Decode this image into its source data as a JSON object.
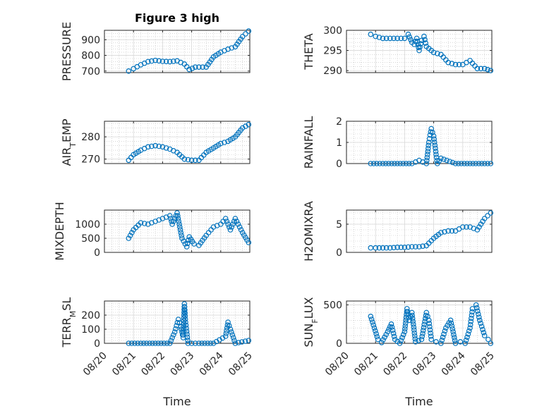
{
  "figure_title": "Figure 3 high",
  "x_axis_label": "Time",
  "colors": {
    "marker": "#0072BD",
    "axes": "#262626",
    "grid": "#d9d9d9",
    "minor_grid": "#bfbfbf"
  },
  "chart_data": [
    {
      "type": "scatter",
      "title": "Figure 3 high",
      "ylabel": "PRESSURE",
      "ylabel_sub": null,
      "xlabel": "",
      "xlim": [
        "2021-08-20",
        "2021-08-25"
      ],
      "ylim": [
        690,
        960
      ],
      "yticks": [
        700,
        800,
        900
      ],
      "ytick_labels": [
        "700",
        "800",
        "900"
      ],
      "grid": "major+minor",
      "x_tick_labels": [],
      "series": [
        {
          "marker": "circle-open",
          "x": [
            "2021-08-20T20:00",
            "2021-08-21T00:00",
            "2021-08-21T06:00",
            "2021-08-21T12:00",
            "2021-08-21T18:00",
            "2021-08-22T00:00",
            "2021-08-22T06:00",
            "2021-08-22T12:00",
            "2021-08-22T18:00",
            "2021-08-22T22:00",
            "2021-08-23T03:00",
            "2021-08-23T12:00",
            "2021-08-23T18:00",
            "2021-08-24T00:00",
            "2021-08-24T06:00",
            "2021-08-24T12:00",
            "2021-08-24T18:00",
            "2021-08-24T23:00"
          ],
          "y": [
            700,
            715,
            740,
            760,
            768,
            762,
            760,
            765,
            745,
            710,
            725,
            725,
            790,
            820,
            840,
            855,
            920,
            955
          ]
        }
      ]
    },
    {
      "type": "scatter",
      "title": "",
      "ylabel": "THETA",
      "ylabel_sub": null,
      "xlabel": "",
      "xlim": [
        "2021-08-20",
        "2021-08-25"
      ],
      "ylim": [
        289.5,
        300
      ],
      "yticks": [
        290,
        295,
        300
      ],
      "ytick_labels": [
        "290",
        "295",
        "300"
      ],
      "grid": "major+minor",
      "x_tick_labels": [],
      "series": [
        {
          "marker": "circle-open",
          "x": [
            "2021-08-20T20:00",
            "2021-08-21T00:00",
            "2021-08-21T06:00",
            "2021-08-21T12:00",
            "2021-08-21T18:00",
            "2021-08-22T00:00",
            "2021-08-22T03:00",
            "2021-08-22T06:00",
            "2021-08-22T08:00",
            "2021-08-22T10:00",
            "2021-08-22T12:00",
            "2021-08-22T14:00",
            "2021-08-22T16:00",
            "2021-08-22T18:00",
            "2021-08-23T00:00",
            "2021-08-23T06:00",
            "2021-08-23T12:00",
            "2021-08-23T18:00",
            "2021-08-24T00:00",
            "2021-08-24T06:00",
            "2021-08-24T12:00",
            "2021-08-24T18:00",
            "2021-08-24T23:00"
          ],
          "y": [
            299,
            298.5,
            298,
            298,
            298,
            298,
            299,
            297,
            296.5,
            298,
            295,
            297.5,
            298.5,
            296,
            294.5,
            294,
            292,
            291.5,
            291.5,
            292.5,
            290.5,
            290.5,
            290
          ]
        }
      ]
    },
    {
      "type": "scatter",
      "title": "",
      "ylabel": "AIR",
      "ylabel_sub": "T",
      "ylabel_tail": "EMP",
      "xlabel": "",
      "xlim": [
        "2021-08-20",
        "2021-08-25"
      ],
      "ylim": [
        268,
        287
      ],
      "yticks": [
        270,
        280
      ],
      "ytick_labels": [
        "270",
        "280"
      ],
      "grid": "major+minor",
      "x_tick_labels": [],
      "series": [
        {
          "marker": "circle-open",
          "x": [
            "2021-08-20T20:00",
            "2021-08-21T00:00",
            "2021-08-21T06:00",
            "2021-08-21T12:00",
            "2021-08-21T18:00",
            "2021-08-22T00:00",
            "2021-08-22T06:00",
            "2021-08-22T12:00",
            "2021-08-22T18:00",
            "2021-08-23T00:00",
            "2021-08-23T06:00",
            "2021-08-23T12:00",
            "2021-08-23T18:00",
            "2021-08-24T00:00",
            "2021-08-24T06:00",
            "2021-08-24T12:00",
            "2021-08-24T18:00",
            "2021-08-24T23:00"
          ],
          "y": [
            269.5,
            272,
            274,
            275.5,
            276,
            275.5,
            274.5,
            273,
            270,
            269.5,
            269.5,
            273,
            275,
            277,
            278,
            280,
            284,
            285.5
          ]
        }
      ]
    },
    {
      "type": "scatter",
      "title": "",
      "ylabel": "RAINFALL",
      "ylabel_sub": null,
      "xlabel": "",
      "xlim": [
        "2021-08-20",
        "2021-08-25"
      ],
      "ylim": [
        0,
        2
      ],
      "yticks": [
        0,
        1,
        2
      ],
      "ytick_labels": [
        "0",
        "1",
        "2"
      ],
      "grid": "major+minor",
      "x_tick_labels": [],
      "series": [
        {
          "marker": "circle-open",
          "x": [
            "2021-08-20T20:00",
            "2021-08-21T06:00",
            "2021-08-21T18:00",
            "2021-08-22T06:00",
            "2021-08-22T12:00",
            "2021-08-22T18:00",
            "2021-08-22T20:00",
            "2021-08-22T21:00",
            "2021-08-22T22:00",
            "2021-08-23T00:00",
            "2021-08-23T03:00",
            "2021-08-23T06:00",
            "2021-08-23T18:00",
            "2021-08-24T06:00",
            "2021-08-24T18:00",
            "2021-08-24T23:00"
          ],
          "y": [
            0,
            0,
            0,
            0,
            0.15,
            0,
            1.0,
            1.35,
            1.65,
            1.3,
            0,
            0.25,
            0,
            0,
            0,
            0
          ]
        }
      ]
    },
    {
      "type": "scatter",
      "title": "",
      "ylabel": "MIXDEPTH",
      "ylabel_sub": null,
      "xlabel": "",
      "xlim": [
        "2021-08-20",
        "2021-08-25"
      ],
      "ylim": [
        0,
        1500
      ],
      "yticks": [
        0,
        500,
        1000
      ],
      "ytick_labels": [
        "0",
        "500",
        "1000"
      ],
      "grid": "major+minor",
      "x_tick_labels": [],
      "series": [
        {
          "marker": "circle-open",
          "x": [
            "2021-08-20T20:00",
            "2021-08-21T00:00",
            "2021-08-21T06:00",
            "2021-08-21T12:00",
            "2021-08-21T18:00",
            "2021-08-22T00:00",
            "2021-08-22T06:00",
            "2021-08-22T08:00",
            "2021-08-22T12:00",
            "2021-08-22T16:00",
            "2021-08-22T20:00",
            "2021-08-22T22:00",
            "2021-08-23T02:00",
            "2021-08-23T06:00",
            "2021-08-23T12:00",
            "2021-08-23T18:00",
            "2021-08-24T00:00",
            "2021-08-24T04:00",
            "2021-08-24T08:00",
            "2021-08-24T12:00",
            "2021-08-24T18:00",
            "2021-08-24T23:00"
          ],
          "y": [
            500,
            800,
            1050,
            1000,
            1100,
            1200,
            1300,
            1000,
            1400,
            500,
            200,
            550,
            300,
            250,
            600,
            900,
            1000,
            1200,
            800,
            1200,
            700,
            350
          ]
        }
      ]
    },
    {
      "type": "scatter",
      "title": "",
      "ylabel": "H2OMIXRA",
      "ylabel_sub": null,
      "xlabel": "",
      "xlim": [
        "2021-08-20",
        "2021-08-25"
      ],
      "ylim": [
        0,
        7.5
      ],
      "yticks": [
        0,
        5
      ],
      "ytick_labels": [
        "0",
        "5"
      ],
      "grid": "major+minor",
      "x_tick_labels": [],
      "series": [
        {
          "marker": "circle-open",
          "x": [
            "2021-08-20T20:00",
            "2021-08-21T00:00",
            "2021-08-21T06:00",
            "2021-08-21T12:00",
            "2021-08-21T18:00",
            "2021-08-22T00:00",
            "2021-08-22T06:00",
            "2021-08-22T12:00",
            "2021-08-22T18:00",
            "2021-08-23T00:00",
            "2021-08-23T06:00",
            "2021-08-23T12:00",
            "2021-08-23T18:00",
            "2021-08-24T00:00",
            "2021-08-24T06:00",
            "2021-08-24T12:00",
            "2021-08-24T18:00",
            "2021-08-24T23:00"
          ],
          "y": [
            0.8,
            0.8,
            0.8,
            0.8,
            0.9,
            0.9,
            1.0,
            1.0,
            1.2,
            2.5,
            3.5,
            3.8,
            3.8,
            4.5,
            4.5,
            4.0,
            6.0,
            7.0
          ]
        }
      ]
    },
    {
      "type": "scatter",
      "title": "",
      "ylabel": "TERR",
      "ylabel_sub": "M",
      "ylabel_tail": "SL",
      "xlabel": "Time",
      "xlim": [
        "2021-08-20",
        "2021-08-25"
      ],
      "ylim": [
        0,
        300
      ],
      "yticks": [
        0,
        100,
        200
      ],
      "ytick_labels": [
        "0",
        "100",
        "200"
      ],
      "grid": "major+minor",
      "x_tick_labels": [
        "08/20",
        "08/21",
        "08/22",
        "08/23",
        "08/24",
        "08/25"
      ],
      "series": [
        {
          "marker": "circle-open",
          "x": [
            "2021-08-20T20:00",
            "2021-08-21T06:00",
            "2021-08-21T18:00",
            "2021-08-22T06:00",
            "2021-08-22T10:00",
            "2021-08-22T13:00",
            "2021-08-22T15:00",
            "2021-08-22T17:00",
            "2021-08-22T18:00",
            "2021-08-22T19:00",
            "2021-08-22T21:00",
            "2021-08-23T06:00",
            "2021-08-23T18:00",
            "2021-08-24T04:00",
            "2021-08-24T06:00",
            "2021-08-24T08:00",
            "2021-08-24T12:00",
            "2021-08-24T23:00"
          ],
          "y": [
            0,
            0,
            0,
            0,
            80,
            170,
            120,
            40,
            280,
            150,
            0,
            0,
            0,
            50,
            150,
            100,
            0,
            20
          ]
        }
      ]
    },
    {
      "type": "scatter",
      "title": "",
      "ylabel": "SUN",
      "ylabel_sub": "F",
      "ylabel_tail": "LUX",
      "xlabel": "Time",
      "xlim": [
        "2021-08-20",
        "2021-08-25"
      ],
      "ylim": [
        0,
        550
      ],
      "yticks": [
        0,
        500
      ],
      "ytick_labels": [
        "0",
        "500"
      ],
      "grid": "major+minor",
      "x_tick_labels": [
        "08/20",
        "08/21",
        "08/22",
        "08/23",
        "08/24",
        "08/25"
      ],
      "series": [
        {
          "marker": "circle-open",
          "x": [
            "2021-08-20T20:00",
            "2021-08-20T23:00",
            "2021-08-21T02:00",
            "2021-08-21T05:00",
            "2021-08-21T10:00",
            "2021-08-21T13:00",
            "2021-08-21T16:00",
            "2021-08-21T20:00",
            "2021-08-22T00:00",
            "2021-08-22T02:00",
            "2021-08-22T04:00",
            "2021-08-22T06:00",
            "2021-08-22T09:00",
            "2021-08-22T14:00",
            "2021-08-22T18:00",
            "2021-08-22T20:00",
            "2021-08-22T22:00",
            "2021-08-23T02:00",
            "2021-08-23T06:00",
            "2021-08-23T10:00",
            "2021-08-23T14:00",
            "2021-08-23T18:00",
            "2021-08-23T22:00",
            "2021-08-24T02:00",
            "2021-08-24T06:00",
            "2021-08-24T08:00",
            "2021-08-24T11:00",
            "2021-08-24T14:00",
            "2021-08-24T18:00",
            "2021-08-24T21:00",
            "2021-08-24T23:00"
          ],
          "y": [
            350,
            200,
            50,
            10,
            150,
            250,
            50,
            0,
            150,
            450,
            300,
            400,
            20,
            50,
            400,
            300,
            50,
            20,
            0,
            200,
            300,
            0,
            20,
            0,
            200,
            450,
            500,
            300,
            100,
            50,
            0
          ]
        }
      ]
    }
  ]
}
